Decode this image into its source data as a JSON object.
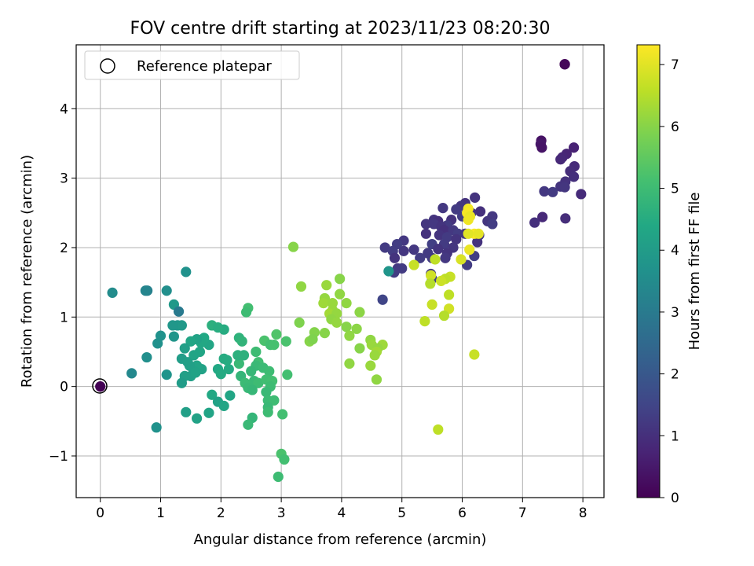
{
  "chart_data": {
    "type": "scatter",
    "title": "FOV centre drift starting at 2023/11/23 08:20:30",
    "xlabel": "Angular distance from reference (arcmin)",
    "ylabel": "Rotation from reference (arcmin)",
    "xlim": [
      -0.4,
      8.35
    ],
    "ylim": [
      -1.6,
      4.92
    ],
    "xticks": [
      0,
      1,
      2,
      3,
      4,
      5,
      6,
      7,
      8
    ],
    "yticks": [
      -1,
      0,
      1,
      2,
      3,
      4
    ],
    "xtick_labels": [
      "0",
      "1",
      "2",
      "3",
      "4",
      "5",
      "6",
      "7",
      "8"
    ],
    "ytick_labels": [
      "−1",
      "0",
      "1",
      "2",
      "3",
      "4"
    ],
    "grid": true,
    "colormap": "viridis",
    "colorbar": {
      "label": "Hours from first FF file",
      "range": [
        0,
        7.32
      ],
      "ticks": [
        0,
        1,
        2,
        3,
        4,
        5,
        6,
        7
      ],
      "tick_labels": [
        "0",
        "1",
        "2",
        "3",
        "4",
        "5",
        "6",
        "7"
      ]
    },
    "legend": {
      "position": "upper-left",
      "label": "Reference platepar"
    },
    "reference_point": {
      "x": 0,
      "y": 0
    },
    "points": [
      [
        7.7,
        4.64,
        0.05
      ],
      [
        7.7,
        4.64,
        0.12
      ],
      [
        0.0,
        0.0,
        0.02
      ],
      [
        7.31,
        3.54,
        0.35
      ],
      [
        7.3,
        3.49,
        0.45
      ],
      [
        7.32,
        3.44,
        0.4
      ],
      [
        7.85,
        3.44,
        0.7
      ],
      [
        7.73,
        3.35,
        0.75
      ],
      [
        7.66,
        3.3,
        0.8
      ],
      [
        7.63,
        3.27,
        0.85
      ],
      [
        7.86,
        3.17,
        0.9
      ],
      [
        7.79,
        3.1,
        0.95
      ],
      [
        7.85,
        3.02,
        1.0
      ],
      [
        7.71,
        2.95,
        1.05
      ],
      [
        7.63,
        2.88,
        1.1
      ],
      [
        7.7,
        2.87,
        1.15
      ],
      [
        7.36,
        2.81,
        1.2
      ],
      [
        7.5,
        2.8,
        1.25
      ],
      [
        7.97,
        2.77,
        0.9
      ],
      [
        7.33,
        2.44,
        0.85
      ],
      [
        7.71,
        2.42,
        0.95
      ],
      [
        7.2,
        2.36,
        1.0
      ],
      [
        6.21,
        2.72,
        1.1
      ],
      [
        6.05,
        2.64,
        1.05
      ],
      [
        5.98,
        2.6,
        1.15
      ],
      [
        5.68,
        2.57,
        1.2
      ],
      [
        5.9,
        2.55,
        1.25
      ],
      [
        6.3,
        2.52,
        1.0
      ],
      [
        6.15,
        2.5,
        1.1
      ],
      [
        6.0,
        2.45,
        1.3
      ],
      [
        6.5,
        2.45,
        1.2
      ],
      [
        6.42,
        2.38,
        1.15
      ],
      [
        5.82,
        2.4,
        1.05
      ],
      [
        5.53,
        2.4,
        1.1
      ],
      [
        5.6,
        2.38,
        1.0
      ],
      [
        5.4,
        2.34,
        1.15
      ],
      [
        5.53,
        2.34,
        1.2
      ],
      [
        5.75,
        2.32,
        1.25
      ],
      [
        6.5,
        2.34,
        1.3
      ],
      [
        5.65,
        2.3,
        1.1
      ],
      [
        5.7,
        2.25,
        1.0
      ],
      [
        5.85,
        2.25,
        1.2
      ],
      [
        5.93,
        2.2,
        1.3
      ],
      [
        6.05,
        2.2,
        1.15
      ],
      [
        5.4,
        2.2,
        1.05
      ],
      [
        5.62,
        2.18,
        1.1
      ],
      [
        5.75,
        2.15,
        1.25
      ],
      [
        6.28,
        2.18,
        1.2
      ],
      [
        5.9,
        2.12,
        1.1
      ],
      [
        5.03,
        2.1,
        1.2
      ],
      [
        4.92,
        2.05,
        1.3
      ],
      [
        5.5,
        2.05,
        1.35
      ],
      [
        5.7,
        2.05,
        1.25
      ],
      [
        5.85,
        2.0,
        1.15
      ],
      [
        6.25,
        2.08,
        1.05
      ],
      [
        5.6,
        1.98,
        1.1
      ],
      [
        4.72,
        2.0,
        1.25
      ],
      [
        4.85,
        1.95,
        1.3
      ],
      [
        5.03,
        1.95,
        1.15
      ],
      [
        5.2,
        1.97,
        1.2
      ],
      [
        5.43,
        1.92,
        1.25
      ],
      [
        5.75,
        1.92,
        1.1
      ],
      [
        6.2,
        1.88,
        1.35
      ],
      [
        5.3,
        1.85,
        1.3
      ],
      [
        5.5,
        1.85,
        1.25
      ],
      [
        5.72,
        1.85,
        1.2
      ],
      [
        4.88,
        1.85,
        1.1
      ],
      [
        6.08,
        1.75,
        1.3
      ],
      [
        4.93,
        1.7,
        1.2
      ],
      [
        5.0,
        1.7,
        1.25
      ],
      [
        4.87,
        1.64,
        1.3
      ],
      [
        5.48,
        1.62,
        1.25
      ],
      [
        5.5,
        1.55,
        1.4
      ],
      [
        4.68,
        1.25,
        1.5
      ],
      [
        6.1,
        2.56,
        7.2
      ],
      [
        6.08,
        2.5,
        7.25
      ],
      [
        6.13,
        2.45,
        7.1
      ],
      [
        6.1,
        2.4,
        7.15
      ],
      [
        6.2,
        2.2,
        7.25
      ],
      [
        6.1,
        2.2,
        7.0
      ],
      [
        6.27,
        2.2,
        7.05
      ],
      [
        6.12,
        1.97,
        7.1
      ],
      [
        5.98,
        1.83,
        6.9
      ],
      [
        5.55,
        1.83,
        6.6
      ],
      [
        5.2,
        1.75,
        6.7
      ],
      [
        5.48,
        1.6,
        6.8
      ],
      [
        5.8,
        1.58,
        6.7
      ],
      [
        5.72,
        1.55,
        6.6
      ],
      [
        5.65,
        1.52,
        6.75
      ],
      [
        5.47,
        1.48,
        6.5
      ],
      [
        5.78,
        1.32,
        6.6
      ],
      [
        5.5,
        1.18,
        6.7
      ],
      [
        5.78,
        1.12,
        6.8
      ],
      [
        5.7,
        1.02,
        6.5
      ],
      [
        5.38,
        0.94,
        6.6
      ],
      [
        6.2,
        0.46,
        6.7
      ],
      [
        5.6,
        -0.62,
        6.6
      ],
      [
        3.2,
        2.01,
        6.0
      ],
      [
        3.33,
        1.44,
        6.1
      ],
      [
        3.75,
        1.46,
        6.2
      ],
      [
        3.97,
        1.55,
        6.0
      ],
      [
        3.97,
        1.33,
        6.1
      ],
      [
        3.72,
        1.27,
        6.15
      ],
      [
        3.7,
        1.2,
        6.25
      ],
      [
        3.85,
        1.2,
        6.2
      ],
      [
        4.08,
        1.2,
        6.1
      ],
      [
        3.85,
        1.1,
        6.2
      ],
      [
        3.8,
        1.05,
        6.3
      ],
      [
        3.92,
        1.05,
        6.15
      ],
      [
        4.3,
        1.07,
        6.05
      ],
      [
        3.83,
        0.97,
        6.1
      ],
      [
        3.92,
        0.92,
        6.15
      ],
      [
        3.3,
        0.92,
        5.9
      ],
      [
        4.08,
        0.86,
        6.0
      ],
      [
        4.25,
        0.83,
        6.05
      ],
      [
        3.55,
        0.78,
        5.95
      ],
      [
        3.72,
        0.77,
        6.0
      ],
      [
        4.13,
        0.73,
        6.1
      ],
      [
        3.47,
        0.65,
        6.0
      ],
      [
        3.52,
        0.68,
        5.9
      ],
      [
        4.48,
        0.67,
        6.1
      ],
      [
        4.5,
        0.6,
        6.2
      ],
      [
        4.68,
        0.6,
        6.25
      ],
      [
        4.6,
        0.55,
        6.15
      ],
      [
        4.3,
        0.55,
        6.0
      ],
      [
        4.58,
        0.5,
        6.3
      ],
      [
        4.55,
        0.45,
        6.2
      ],
      [
        4.13,
        0.33,
        6.1
      ],
      [
        4.48,
        0.3,
        6.2
      ],
      [
        4.58,
        0.1,
        6.1
      ],
      [
        2.72,
        0.66,
        5.2
      ],
      [
        2.45,
        1.13,
        5.1
      ],
      [
        2.42,
        1.07,
        5.0
      ],
      [
        2.92,
        0.75,
        5.3
      ],
      [
        3.08,
        0.65,
        5.2
      ],
      [
        2.82,
        0.6,
        5.1
      ],
      [
        2.88,
        0.6,
        5.15
      ],
      [
        2.58,
        0.5,
        5.0
      ],
      [
        2.62,
        0.35,
        5.05
      ],
      [
        2.58,
        0.3,
        4.9
      ],
      [
        2.7,
        0.27,
        4.95
      ],
      [
        2.8,
        0.22,
        5.0
      ],
      [
        2.3,
        0.33,
        4.9
      ],
      [
        2.5,
        0.22,
        4.85
      ],
      [
        2.33,
        0.15,
        4.8
      ],
      [
        2.55,
        0.08,
        4.9
      ],
      [
        2.62,
        0.05,
        5.0
      ],
      [
        2.75,
        0.1,
        5.05
      ],
      [
        2.85,
        0.08,
        5.1
      ],
      [
        2.4,
        0.05,
        4.95
      ],
      [
        2.45,
        -0.02,
        4.9
      ],
      [
        2.52,
        -0.05,
        4.85
      ],
      [
        2.82,
        0.0,
        5.0
      ],
      [
        3.1,
        0.17,
        5.1
      ],
      [
        2.75,
        -0.08,
        4.9
      ],
      [
        2.78,
        -0.2,
        4.95
      ],
      [
        2.88,
        -0.2,
        5.0
      ],
      [
        2.78,
        -0.3,
        4.9
      ],
      [
        2.78,
        -0.37,
        5.0
      ],
      [
        3.02,
        -0.4,
        5.1
      ],
      [
        2.52,
        -0.45,
        4.8
      ],
      [
        2.45,
        -0.55,
        4.9
      ],
      [
        3.0,
        -0.97,
        5.2
      ],
      [
        3.05,
        -1.05,
        5.1
      ],
      [
        2.95,
        -1.3,
        5.0
      ],
      [
        2.3,
        0.7,
        4.7
      ],
      [
        2.35,
        0.65,
        4.75
      ],
      [
        2.28,
        0.45,
        4.6
      ],
      [
        2.38,
        0.45,
        4.65
      ],
      [
        2.05,
        0.82,
        4.5
      ],
      [
        1.85,
        0.88,
        4.6
      ],
      [
        1.95,
        0.85,
        4.55
      ],
      [
        2.05,
        0.4,
        4.5
      ],
      [
        2.13,
        0.25,
        4.45
      ],
      [
        2.1,
        0.38,
        4.5
      ],
      [
        1.95,
        0.25,
        4.4
      ],
      [
        2.0,
        0.18,
        4.45
      ],
      [
        1.8,
        0.6,
        4.3
      ],
      [
        1.72,
        0.7,
        4.4
      ],
      [
        1.67,
        0.63,
        4.35
      ],
      [
        1.65,
        0.5,
        4.3
      ],
      [
        1.55,
        0.45,
        4.25
      ],
      [
        1.6,
        0.68,
        4.2
      ],
      [
        1.5,
        0.65,
        4.3
      ],
      [
        1.68,
        0.25,
        4.2
      ],
      [
        1.6,
        0.3,
        4.25
      ],
      [
        1.55,
        0.22,
        4.2
      ],
      [
        1.5,
        0.15,
        4.1
      ],
      [
        1.48,
        0.3,
        4.15
      ],
      [
        1.58,
        0.2,
        4.2
      ],
      [
        1.4,
        0.55,
        4.1
      ],
      [
        1.35,
        0.4,
        4.05
      ],
      [
        1.4,
        0.15,
        4.1
      ],
      [
        1.35,
        0.05,
        4.0
      ],
      [
        1.45,
        0.35,
        4.1
      ],
      [
        1.85,
        -0.12,
        4.4
      ],
      [
        2.15,
        -0.13,
        4.3
      ],
      [
        1.95,
        -0.22,
        4.2
      ],
      [
        2.05,
        -0.28,
        4.3
      ],
      [
        1.8,
        -0.38,
        4.25
      ],
      [
        1.42,
        -0.37,
        4.1
      ],
      [
        1.6,
        -0.46,
        4.2
      ],
      [
        1.22,
        1.18,
        3.9
      ],
      [
        1.28,
        0.88,
        3.8
      ],
      [
        1.35,
        0.88,
        3.9
      ],
      [
        1.2,
        0.88,
        3.85
      ],
      [
        1.3,
        1.08,
        3.0
      ],
      [
        1.42,
        1.65,
        3.7
      ],
      [
        1.1,
        1.38,
        3.6
      ],
      [
        1.0,
        0.73,
        3.7
      ],
      [
        0.95,
        0.62,
        3.65
      ],
      [
        1.22,
        0.72,
        3.8
      ],
      [
        1.1,
        0.17,
        3.75
      ],
      [
        0.77,
        0.42,
        3.6
      ],
      [
        0.78,
        1.38,
        3.2
      ],
      [
        0.75,
        1.38,
        3.3
      ],
      [
        0.2,
        1.35,
        3.5
      ],
      [
        0.52,
        0.19,
        3.4
      ],
      [
        0.93,
        -0.59,
        3.7
      ],
      [
        4.78,
        1.66,
        3.8
      ]
    ]
  }
}
